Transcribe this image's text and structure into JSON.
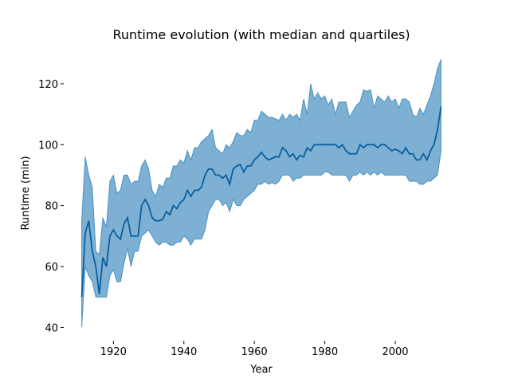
{
  "chart_data": {
    "type": "line",
    "title": "Runtime evolution (with median and quartiles)",
    "xlabel": "Year",
    "ylabel": "Runtime (min)",
    "x": [
      1911,
      1912,
      1913,
      1914,
      1915,
      1916,
      1917,
      1918,
      1919,
      1920,
      1921,
      1922,
      1923,
      1924,
      1925,
      1926,
      1927,
      1928,
      1929,
      1930,
      1931,
      1932,
      1933,
      1934,
      1935,
      1936,
      1937,
      1938,
      1939,
      1940,
      1941,
      1942,
      1943,
      1944,
      1945,
      1946,
      1947,
      1948,
      1949,
      1950,
      1951,
      1952,
      1953,
      1954,
      1955,
      1956,
      1957,
      1958,
      1959,
      1960,
      1961,
      1962,
      1963,
      1964,
      1965,
      1966,
      1967,
      1968,
      1969,
      1970,
      1971,
      1972,
      1973,
      1974,
      1975,
      1976,
      1977,
      1978,
      1979,
      1980,
      1981,
      1982,
      1983,
      1984,
      1985,
      1986,
      1987,
      1988,
      1989,
      1990,
      1991,
      1992,
      1993,
      1994,
      1995,
      1996,
      1997,
      1998,
      1999,
      2000,
      2001,
      2002,
      2003,
      2004,
      2005,
      2006,
      2007,
      2008,
      2009,
      2010,
      2011,
      2012,
      2013
    ],
    "series": [
      {
        "color": "#0a5fa0",
        "values": [
          50,
          71,
          75,
          65,
          60,
          51,
          63,
          60,
          70,
          72,
          70,
          69,
          74,
          76,
          70,
          70,
          70,
          80,
          82,
          80,
          76,
          75,
          75,
          75.5,
          78,
          77,
          80,
          79,
          81,
          82,
          85,
          83,
          85,
          85,
          86,
          90,
          92,
          92,
          90,
          90,
          89,
          90,
          87,
          92,
          93,
          93.5,
          91,
          93,
          93,
          95,
          96,
          97.5,
          96,
          95,
          95.5,
          96,
          96,
          99,
          98,
          96,
          97,
          95,
          96.5,
          96,
          99,
          98,
          100,
          100,
          100,
          100,
          100,
          100,
          100,
          99,
          100,
          98,
          97,
          97,
          97,
          100,
          99,
          100,
          100,
          100,
          99,
          100,
          100,
          99,
          98,
          98.5,
          98,
          97,
          99,
          97,
          97,
          95,
          95,
          97,
          95,
          98,
          100,
          105,
          112.5
        ]
      }
    ],
    "band": {
      "color": "#1f77b4",
      "upper": [
        75,
        96,
        90,
        86,
        65,
        64,
        76,
        73,
        88,
        90,
        84,
        85,
        90,
        90,
        87,
        88,
        88,
        93,
        95,
        92,
        85,
        83,
        87,
        86,
        89,
        89,
        93,
        93,
        95,
        94,
        98,
        95,
        99,
        99,
        101,
        102,
        103,
        105,
        99,
        98,
        97,
        100,
        99,
        101,
        104,
        103,
        103,
        105,
        104,
        108,
        108,
        111,
        110,
        109,
        109,
        108.5,
        108,
        110,
        108,
        110,
        109,
        110,
        108,
        115,
        110,
        120,
        115,
        117,
        115,
        116,
        113,
        115,
        110,
        114,
        114,
        114,
        109,
        111,
        113,
        114,
        118,
        117.5,
        118,
        112,
        116,
        115,
        114,
        116,
        114,
        115,
        112,
        115,
        115,
        114,
        110,
        109,
        112,
        110,
        113,
        116,
        120,
        125,
        128
      ],
      "lower": [
        40,
        60,
        57,
        55,
        50,
        50,
        50,
        50,
        57,
        59,
        55,
        55,
        61,
        66,
        60,
        65,
        65,
        70,
        71,
        72,
        70,
        68,
        67,
        68,
        68,
        67,
        67,
        68,
        68,
        70,
        69,
        67,
        69,
        69,
        69,
        72,
        78,
        80,
        82,
        82,
        80,
        81,
        78,
        82,
        80,
        80,
        82,
        83,
        84,
        85,
        87,
        87,
        88,
        87,
        87.5,
        87,
        88,
        90,
        90,
        90,
        88,
        89,
        89,
        90,
        90,
        90,
        90,
        90,
        90,
        91,
        91,
        90,
        90,
        90,
        90,
        90,
        88,
        90,
        90,
        91,
        90,
        91,
        90,
        91,
        90,
        91,
        90,
        90,
        90,
        90,
        90,
        90,
        90,
        88,
        88,
        88,
        87,
        87,
        88,
        88,
        89,
        90,
        98
      ]
    },
    "xlim": [
      1905.9,
      2018.1
    ],
    "xticks": [
      1920,
      1940,
      1960,
      1980,
      2000
    ],
    "ylim": [
      35.6,
      132.4
    ],
    "yticks": [
      40,
      60,
      80,
      100,
      120
    ]
  }
}
